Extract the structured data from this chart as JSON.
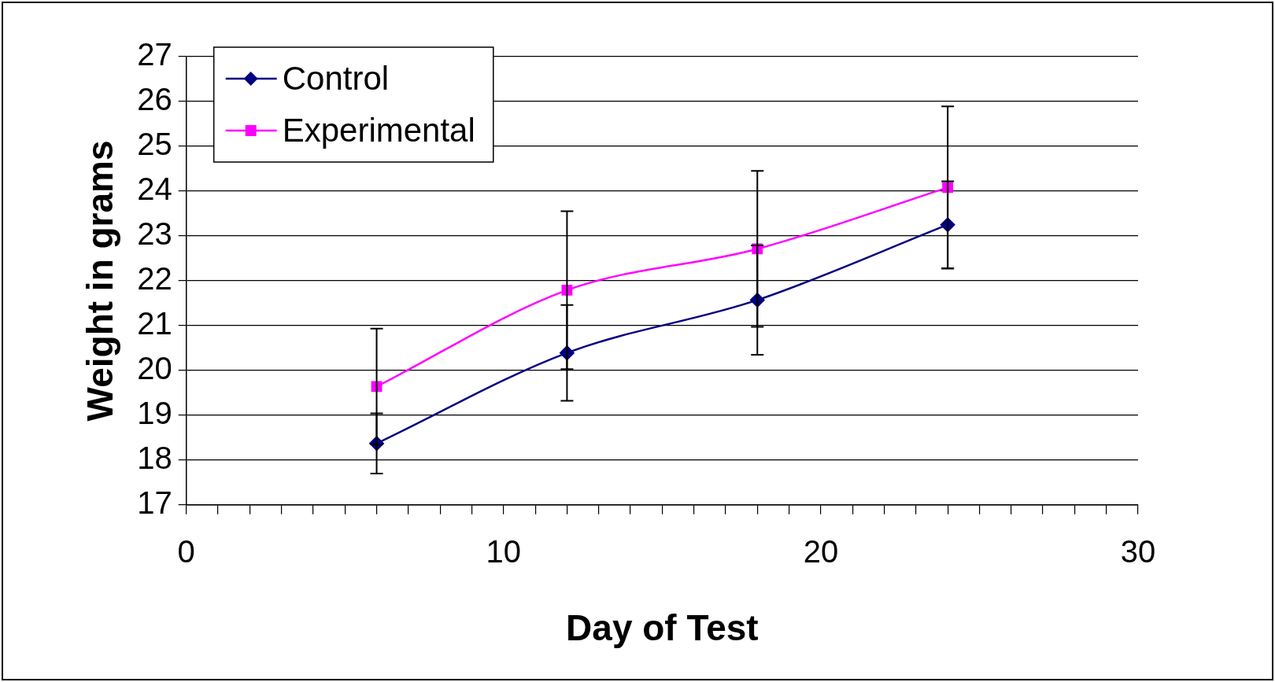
{
  "chart_data": {
    "type": "line",
    "xlabel": "Day of Test",
    "ylabel": "Weight in grams",
    "xlim": [
      0,
      30
    ],
    "xticks": [
      0,
      {
        "value": 1,
        "label": null
      },
      {
        "value": 2,
        "label": null
      },
      {
        "value": 3,
        "label": null
      },
      {
        "value": 4,
        "label": null
      },
      {
        "value": 5,
        "label": null
      },
      {
        "value": 6,
        "label": null
      },
      {
        "value": 7,
        "label": null
      },
      {
        "value": 8,
        "label": null
      },
      {
        "value": 9,
        "label": null
      },
      10,
      {
        "value": 11,
        "label": null
      },
      {
        "value": 12,
        "label": null
      },
      {
        "value": 13,
        "label": null
      },
      {
        "value": 14,
        "label": null
      },
      {
        "value": 15,
        "label": null
      },
      {
        "value": 16,
        "label": null
      },
      {
        "value": 17,
        "label": null
      },
      {
        "value": 18,
        "label": null
      },
      {
        "value": 19,
        "label": null
      },
      20,
      {
        "value": 21,
        "label": null
      },
      {
        "value": 22,
        "label": null
      },
      {
        "value": 23,
        "label": null
      },
      {
        "value": 24,
        "label": null
      },
      {
        "value": 25,
        "label": null
      },
      {
        "value": 26,
        "label": null
      },
      {
        "value": 27,
        "label": null
      },
      {
        "value": 28,
        "label": null
      },
      {
        "value": 29,
        "label": null
      },
      30
    ],
    "ylim": [
      17,
      27
    ],
    "yticks": [
      17,
      18,
      19,
      20,
      21,
      22,
      23,
      24,
      25,
      26,
      27
    ],
    "grid": "y",
    "legend": "top left",
    "line_style": "solid",
    "x": [
      6,
      12,
      18,
      24
    ],
    "series": [
      {
        "name": "Control",
        "color": "#000080",
        "marker": "diamond",
        "values": [
          18.37,
          20.39,
          21.57,
          23.25
        ],
        "errors": [
          0.67,
          1.07,
          1.22,
          0.97
        ]
      },
      {
        "name": "Experimental",
        "color": "#ff00ff",
        "marker": "square",
        "values": [
          19.64,
          21.79,
          22.71,
          24.08
        ],
        "errors": [
          1.29,
          1.76,
          1.74,
          1.81
        ]
      }
    ]
  }
}
